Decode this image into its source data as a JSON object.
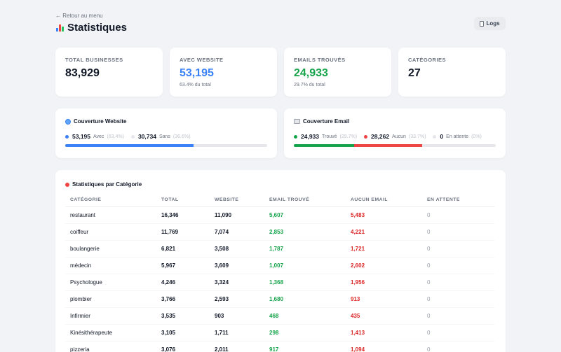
{
  "header": {
    "back_label": "← Retour au menu",
    "title": "Statistiques",
    "logs_label": "Logs"
  },
  "stats": [
    {
      "label": "Total Businesses",
      "value": "83,929",
      "sub": "",
      "color": "#111827"
    },
    {
      "label": "Avec Website",
      "value": "53,195",
      "sub": "63.4% du total",
      "color": "#3b82f6"
    },
    {
      "label": "Emails Trouvés",
      "value": "24,933",
      "sub": "29.7% du total",
      "color": "#16a34a"
    },
    {
      "label": "Catégories",
      "value": "27",
      "sub": "",
      "color": "#111827"
    }
  ],
  "website_coverage": {
    "title": "Couverture Website",
    "items": [
      {
        "count": "53,195",
        "label": "Avec",
        "pct": "(63.4%)",
        "color": "#3b82f6"
      },
      {
        "count": "30,734",
        "label": "Sans",
        "pct": "(36.6%)",
        "color": "#e5e7eb"
      }
    ],
    "bar": [
      {
        "fraction": 0.634,
        "color": "#3b82f6"
      }
    ]
  },
  "email_coverage": {
    "title": "Couverture Email",
    "items": [
      {
        "count": "24,933",
        "label": "Trouvé",
        "pct": "(29.7%)",
        "color": "#16a34a"
      },
      {
        "count": "28,262",
        "label": "Aucun",
        "pct": "(33.7%)",
        "color": "#ef4444"
      },
      {
        "count": "0",
        "label": "En attente",
        "pct": "(0%)",
        "color": "#e5e7eb"
      }
    ],
    "bar": [
      {
        "fraction": 0.297,
        "color": "#16a34a"
      },
      {
        "fraction": 0.337,
        "color": "#ef4444"
      }
    ]
  },
  "category_table": {
    "title": "Statistiques par Catégorie",
    "columns": [
      "Catégorie",
      "Total",
      "Website",
      "Email Trouvé",
      "Aucun Email",
      "En Attente"
    ],
    "rows": [
      [
        "restaurant",
        "16,346",
        "11,090",
        "5,607",
        "5,483",
        "0"
      ],
      [
        "coiffeur",
        "11,769",
        "7,074",
        "2,853",
        "4,221",
        "0"
      ],
      [
        "boulangerie",
        "6,821",
        "3,508",
        "1,787",
        "1,721",
        "0"
      ],
      [
        "médecin",
        "5,967",
        "3,609",
        "1,007",
        "2,602",
        "0"
      ],
      [
        "Psychologue",
        "4,246",
        "3,324",
        "1,368",
        "1,956",
        "0"
      ],
      [
        "plombier",
        "3,766",
        "2,593",
        "1,680",
        "913",
        "0"
      ],
      [
        "Infirmier",
        "3,535",
        "903",
        "468",
        "435",
        "0"
      ],
      [
        "Kinésithérapeute",
        "3,105",
        "1,711",
        "298",
        "1,413",
        "0"
      ],
      [
        "pizzeria",
        "3,076",
        "2,011",
        "917",
        "1,094",
        "0"
      ]
    ]
  }
}
